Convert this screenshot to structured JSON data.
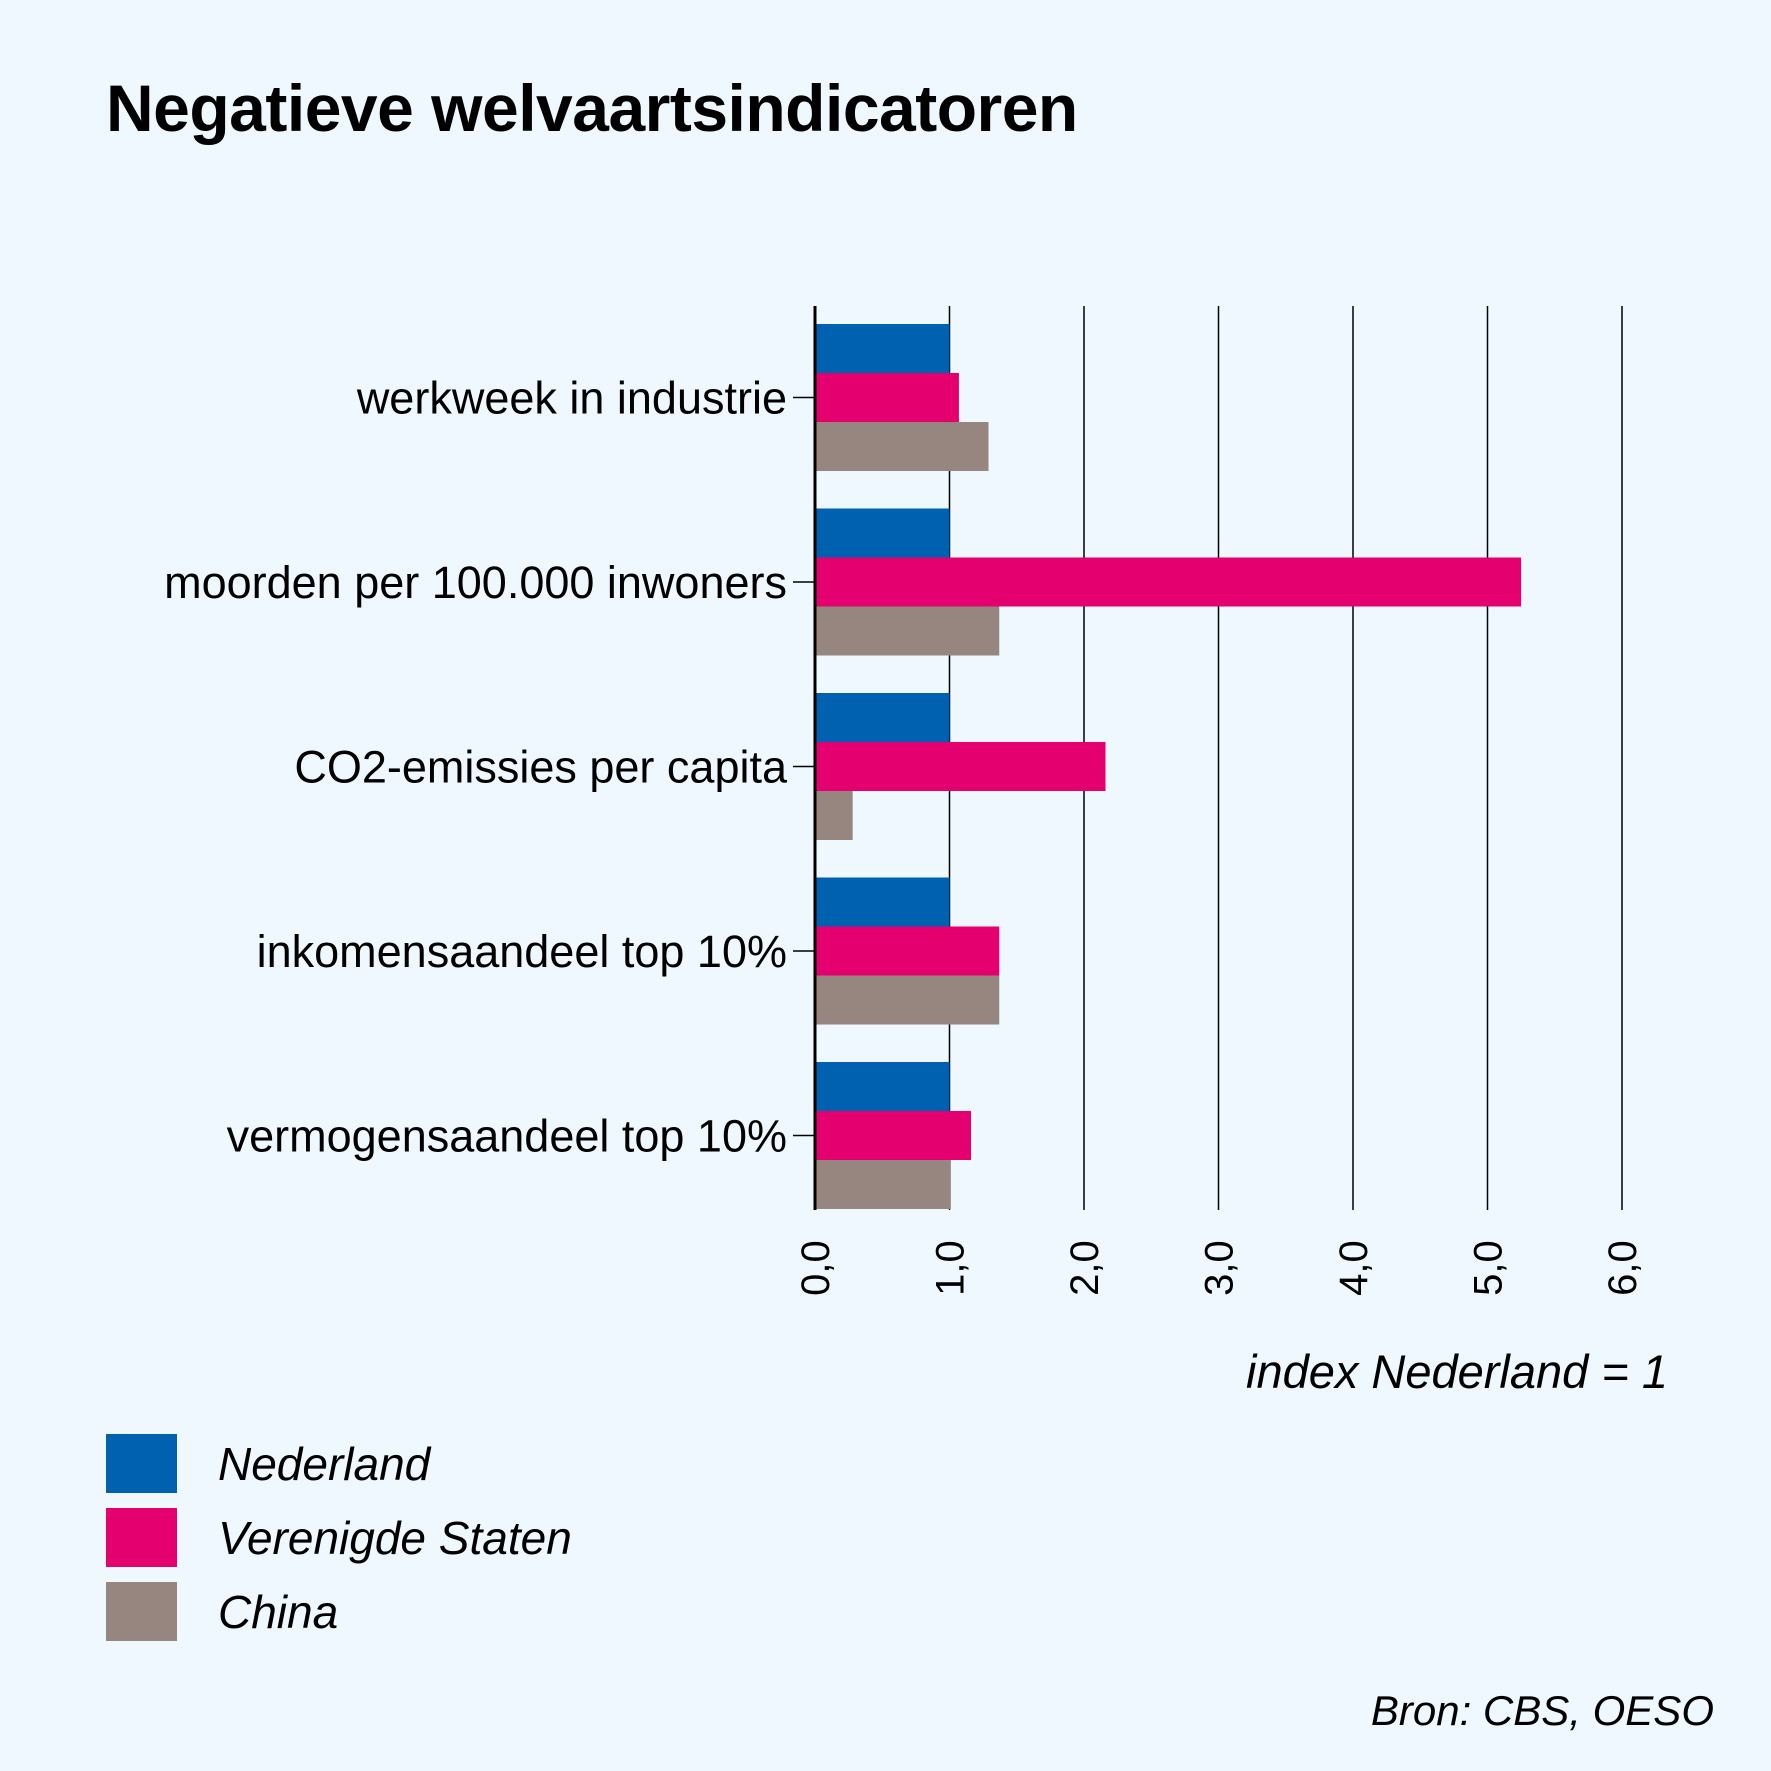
{
  "chart_data": {
    "type": "bar",
    "orientation": "horizontal",
    "title": "Negatieve welvaartsindicatoren",
    "categories": [
      "werkweek in industrie",
      "moorden per 100.000 inwoners",
      "CO2-emissies per capita",
      "inkomensaandeel top 10%",
      "vermogensaandeel top 10%"
    ],
    "series": [
      {
        "name": "Nederland",
        "color": "#0061b1",
        "values": [
          1.0,
          1.0,
          1.0,
          1.0,
          1.0
        ]
      },
      {
        "name": "Verenigde Staten",
        "color": "#e4006e",
        "values": [
          1.07,
          5.25,
          2.16,
          1.37,
          1.16
        ]
      },
      {
        "name": "China",
        "color": "#978580",
        "values": [
          1.29,
          1.37,
          0.28,
          1.37,
          1.01
        ]
      }
    ],
    "xlim": [
      0,
      6
    ],
    "xticks": [
      "0,0",
      "1,0",
      "2,0",
      "3,0",
      "4,0",
      "5,0",
      "6,0"
    ],
    "xlabel": "index Nederland = 1",
    "grid": true,
    "legend_position": "bottom-left"
  },
  "source": "Bron: CBS, OESO"
}
